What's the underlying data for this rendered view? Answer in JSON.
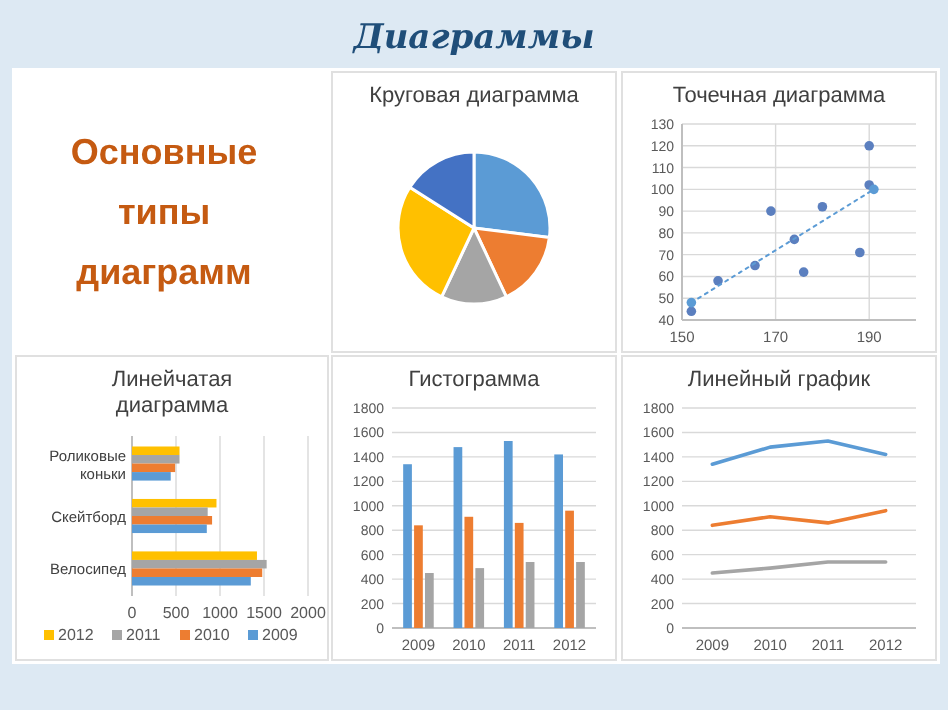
{
  "chart_data": [
    {
      "type": "other",
      "title": "Диаграммы",
      "subtitle": "Основные типы диаграмм"
    },
    {
      "type": "pie",
      "title": "Круговая диаграмма",
      "categories": [
        null,
        null,
        null,
        null,
        null
      ],
      "values": [
        27,
        16,
        14,
        27,
        16
      ],
      "colors": [
        "#5b9bd5",
        "#ed7d31",
        "#a5a5a5",
        "#ffc000",
        "#4472c4"
      ]
    },
    {
      "type": "scatter",
      "title": "Точечная диаграмма",
      "xlim": [
        150,
        200
      ],
      "xticks": [
        150,
        170,
        190
      ],
      "ylim": [
        40,
        130
      ],
      "yticks": [
        40,
        50,
        60,
        70,
        80,
        90,
        100,
        110,
        120,
        130
      ],
      "grid": true,
      "marker": "circle",
      "series": [
        {
          "color": "#5b7fbf",
          "x": [
            152,
            157.7,
            165.6,
            169,
            174,
            176,
            180,
            188,
            190,
            190
          ],
          "values": [
            44,
            58,
            65,
            90,
            77,
            62,
            92,
            71,
            102,
            120
          ]
        },
        {
          "type": "line",
          "color": "#5b9bd5",
          "line_style": "dotted",
          "x": [
            152,
            191
          ],
          "values": [
            48,
            100
          ]
        }
      ]
    },
    {
      "type": "bar",
      "title": "Линейчатая диаграмма",
      "orientation": "horizontal",
      "categories": [
        "Роликовые коньки",
        "Скейтборд",
        "Велосипед"
      ],
      "xlim": [
        0,
        2000
      ],
      "xticks": [
        0,
        500,
        1000,
        1500,
        2000
      ],
      "grid": "x",
      "legend": "bottom",
      "series": [
        {
          "name": "2012",
          "color": "#ffc000",
          "values": [
            540,
            960,
            1420
          ]
        },
        {
          "name": "2011",
          "color": "#a5a5a5",
          "values": [
            540,
            860,
            1530
          ]
        },
        {
          "name": "2010",
          "color": "#ed7d31",
          "values": [
            490,
            910,
            1480
          ]
        },
        {
          "name": "2009",
          "color": "#5b9bd5",
          "values": [
            440,
            850,
            1350
          ]
        }
      ]
    },
    {
      "type": "bar",
      "title": "Гистограмма",
      "categories": [
        "2009",
        "2010",
        "2011",
        "2012"
      ],
      "ylim": [
        0,
        1800
      ],
      "yticks": [
        0,
        200,
        400,
        600,
        800,
        1000,
        1200,
        1400,
        1600,
        1800
      ],
      "grid": "y",
      "series": [
        {
          "color": "#5b9bd5",
          "values": [
            1340,
            1480,
            1530,
            1420
          ]
        },
        {
          "color": "#ed7d31",
          "values": [
            840,
            910,
            860,
            960
          ]
        },
        {
          "color": "#a5a5a5",
          "values": [
            450,
            490,
            540,
            540
          ]
        }
      ]
    },
    {
      "type": "line",
      "title": "Линейный график",
      "categories": [
        "2009",
        "2010",
        "2011",
        "2012"
      ],
      "ylim": [
        0,
        1800
      ],
      "yticks": [
        0,
        200,
        400,
        600,
        800,
        1000,
        1200,
        1400,
        1600,
        1800
      ],
      "grid": "y",
      "marker": "none",
      "series": [
        {
          "color": "#5b9bd5",
          "values": [
            1340,
            1480,
            1530,
            1420
          ]
        },
        {
          "color": "#ed7d31",
          "values": [
            840,
            910,
            860,
            960
          ]
        },
        {
          "color": "#a5a5a5",
          "values": [
            450,
            490,
            540,
            540
          ]
        }
      ]
    }
  ]
}
